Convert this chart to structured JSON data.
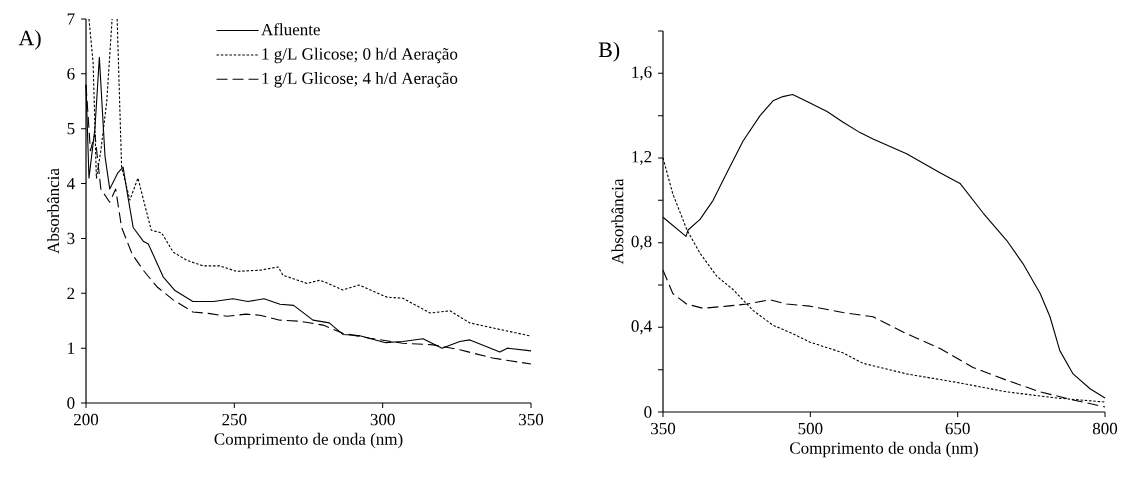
{
  "chart_data": [
    {
      "type": "line",
      "title": "A)",
      "xlabel": "Comprimento de onda (nm)",
      "ylabel": "Absorbância",
      "xlim": [
        200,
        350
      ],
      "ylim": [
        0,
        7
      ],
      "xticks": [
        200,
        250,
        300,
        350
      ],
      "yticks": [
        0,
        1,
        2,
        3,
        4,
        5,
        6,
        7
      ],
      "legend": "top",
      "series": [
        {
          "name": "Afluente",
          "color": "#000000",
          "line_style": "solid",
          "x": [
            200,
            201,
            203,
            204.5,
            206.4,
            208,
            210.8,
            212.5,
            214,
            215.9,
            219.3,
            221,
            226,
            230,
            236,
            243,
            249.5,
            254.6,
            260,
            265.4,
            270,
            276.5,
            282,
            286.6,
            292,
            301,
            306.8,
            313.6,
            320,
            326,
            329.4,
            339.5,
            342,
            350
          ],
          "values": [
            5.8,
            4.1,
            5.0,
            6.3,
            4.5,
            3.9,
            4.2,
            4.3,
            3.8,
            3.2,
            2.95,
            2.9,
            2.3,
            2.05,
            1.85,
            1.85,
            1.9,
            1.85,
            1.9,
            1.8,
            1.78,
            1.51,
            1.46,
            1.25,
            1.23,
            1.1,
            1.12,
            1.17,
            1.0,
            1.12,
            1.15,
            0.93,
            1.0,
            0.95
          ]
        },
        {
          "name": "1 g/L Glicose; 0 h/d Aeração",
          "color": "#000000",
          "line_style": "dotted",
          "x": [
            201,
            202.4,
            203.5,
            205,
            207,
            208.8,
            209.6,
            210.5,
            212,
            214.8,
            217.5,
            222,
            225.5,
            229.4,
            234,
            239.5,
            245,
            250.8,
            258.6,
            264.8,
            266.4,
            274.5,
            278.9,
            286.6,
            292,
            301.4,
            306.8,
            316,
            322.7,
            329.4,
            337,
            350
          ],
          "values": [
            7,
            6.2,
            4.1,
            4.6,
            5.5,
            7,
            null,
            7,
            4.3,
            3.7,
            4.1,
            3.15,
            3.1,
            2.75,
            2.6,
            2.5,
            2.5,
            2.4,
            2.42,
            2.48,
            2.33,
            2.18,
            2.24,
            2.06,
            2.15,
            1.93,
            1.91,
            1.64,
            1.68,
            1.46,
            1.37,
            1.22
          ]
        },
        {
          "name": "1 g/L Glicose; 4 h/d Aeração",
          "color": "#000000",
          "line_style": "dashed",
          "x": [
            200,
            201.5,
            203,
            205,
            208,
            210,
            212,
            215,
            215.5,
            219.3,
            223.9,
            229.4,
            236,
            241.8,
            247.5,
            254,
            258.6,
            265.4,
            272,
            279.9,
            286.6,
            295.7,
            306.8,
            317,
            326,
            337,
            350
          ],
          "values": [
            5.8,
            4.6,
            4.9,
            3.9,
            3.66,
            3.9,
            3.2,
            2.79,
            2.72,
            2.42,
            2.12,
            1.88,
            1.66,
            1.63,
            1.58,
            1.62,
            1.6,
            1.51,
            1.49,
            1.42,
            1.27,
            1.18,
            1.09,
            1.06,
            0.97,
            0.82,
            0.71
          ]
        }
      ]
    },
    {
      "type": "line",
      "title": "B)",
      "xlabel": "Comprimento de onda (nm)",
      "ylabel": "Absorbância",
      "xlim": [
        350,
        800
      ],
      "ylim": [
        0,
        1.8
      ],
      "xticks": [
        350,
        500,
        650,
        800
      ],
      "yticks": [
        0,
        {
          "value": 0.2,
          "label": null
        },
        {
          "value": 0.4,
          "label": "0,4"
        },
        {
          "value": 0.6,
          "label": null
        },
        {
          "value": 0.8,
          "label": "0,8"
        },
        {
          "value": 1.0,
          "label": null
        },
        {
          "value": 1.2,
          "label": "1,2"
        },
        {
          "value": 1.4,
          "label": null
        },
        {
          "value": 1.6,
          "label": "1,6"
        },
        {
          "value": 1.8,
          "label": null
        }
      ],
      "series": [
        {
          "color": "#000000",
          "line_style": "solid",
          "x": [
            350,
            373.4,
            375.5,
            387.7,
            401,
            415,
            431.5,
            448.8,
            462,
            472,
            482,
            499.7,
            517,
            533,
            550.6,
            563.8,
            598,
            632,
            652.4,
            675.9,
            700,
            716.6,
            734,
            744,
            754,
            767.5,
            784.8,
            800
          ],
          "values": [
            0.92,
            0.83,
            0.86,
            0.91,
            1.0,
            1.13,
            1.28,
            1.4,
            1.47,
            1.49,
            1.5,
            1.46,
            1.42,
            1.37,
            1.32,
            1.29,
            1.22,
            1.13,
            1.08,
            0.94,
            0.81,
            0.7,
            0.56,
            0.45,
            0.29,
            0.18,
            0.11,
            0.066
          ]
        },
        {
          "color": "#000000",
          "line_style": "dotted",
          "x": [
            350,
            360,
            374.4,
            387.7,
            405,
            421,
            441.6,
            462,
            482,
            499.7,
            533,
            553.7,
            598,
            649,
            700,
            751,
            800
          ],
          "values": [
            1.2,
            1.03,
            0.86,
            0.75,
            0.64,
            0.58,
            0.48,
            0.41,
            0.37,
            0.33,
            0.28,
            0.23,
            0.18,
            0.14,
            0.095,
            0.066,
            0.047
          ]
        },
        {
          "color": "#000000",
          "line_style": "dashed",
          "x": [
            350,
            360,
            374,
            390.7,
            415,
            435.5,
            459,
            476,
            499.7,
            533,
            563.8,
            598,
            632,
            665.7,
            700,
            734,
            767.5,
            800
          ],
          "values": [
            0.67,
            0.56,
            0.51,
            0.49,
            0.5,
            0.51,
            0.53,
            0.51,
            0.5,
            0.47,
            0.45,
            0.37,
            0.3,
            0.21,
            0.15,
            0.095,
            0.057,
            0.024
          ]
        }
      ]
    }
  ]
}
